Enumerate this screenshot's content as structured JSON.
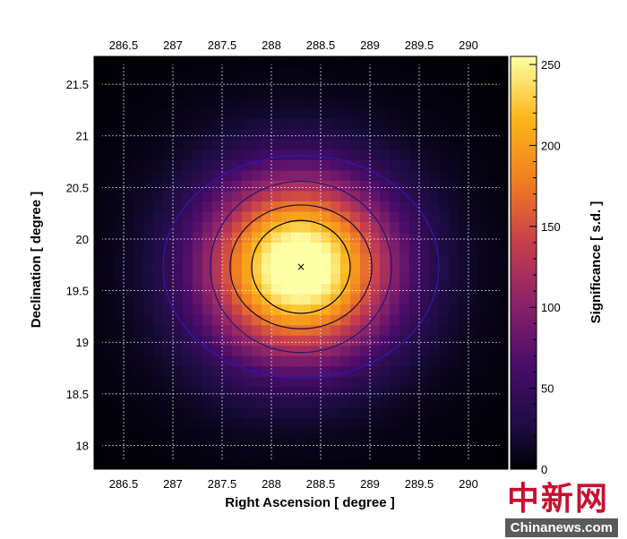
{
  "chart_data": {
    "type": "heatmap",
    "xlabel": "Right Ascension [ degree ]",
    "ylabel": "Declination [ degree ]",
    "colorbar_label": "Significance [ s.d. ]",
    "xlim": [
      286.2,
      290.4
    ],
    "ylim": [
      17.77,
      21.77
    ],
    "zlim": [
      0,
      255
    ],
    "x_ticks": [
      "286.5",
      "287",
      "287.5",
      "288",
      "288.5",
      "289",
      "289.5",
      "290"
    ],
    "x_tick_values": [
      286.5,
      287,
      287.5,
      288,
      288.5,
      289,
      289.5,
      290
    ],
    "y_ticks": [
      "18",
      "18.5",
      "19",
      "19.5",
      "20",
      "20.5",
      "21",
      "21.5"
    ],
    "y_tick_values": [
      18,
      18.5,
      19,
      19.5,
      20,
      20.5,
      21,
      21.5
    ],
    "colorbar_ticks": [
      "0",
      "50",
      "100",
      "150",
      "200",
      "250"
    ],
    "colorbar_tick_values": [
      0,
      50,
      100,
      150,
      200,
      250
    ],
    "source": {
      "ra": 288.3,
      "dec": 19.73,
      "peak_significance": 250,
      "marker": "×"
    },
    "contours": [
      {
        "level": "inner",
        "ra_radius": 0.5,
        "dec_radius": 0.45,
        "color": "#000000"
      },
      {
        "level": "second",
        "ra_radius": 0.72,
        "dec_radius": 0.6,
        "color": "#1a0a3c"
      },
      {
        "level": "third",
        "ra_radius": 0.92,
        "dec_radius": 0.83,
        "color": "#1c1a78"
      },
      {
        "level": "outer",
        "ra_radius": 1.4,
        "dec_radius": 1.08,
        "color": "#2a1ab0"
      }
    ],
    "grid": true,
    "colormap": "inferno-like (black → purple → orange → pale yellow)"
  },
  "watermark": {
    "chinese": "中新网",
    "english": "Chinanews.com"
  }
}
